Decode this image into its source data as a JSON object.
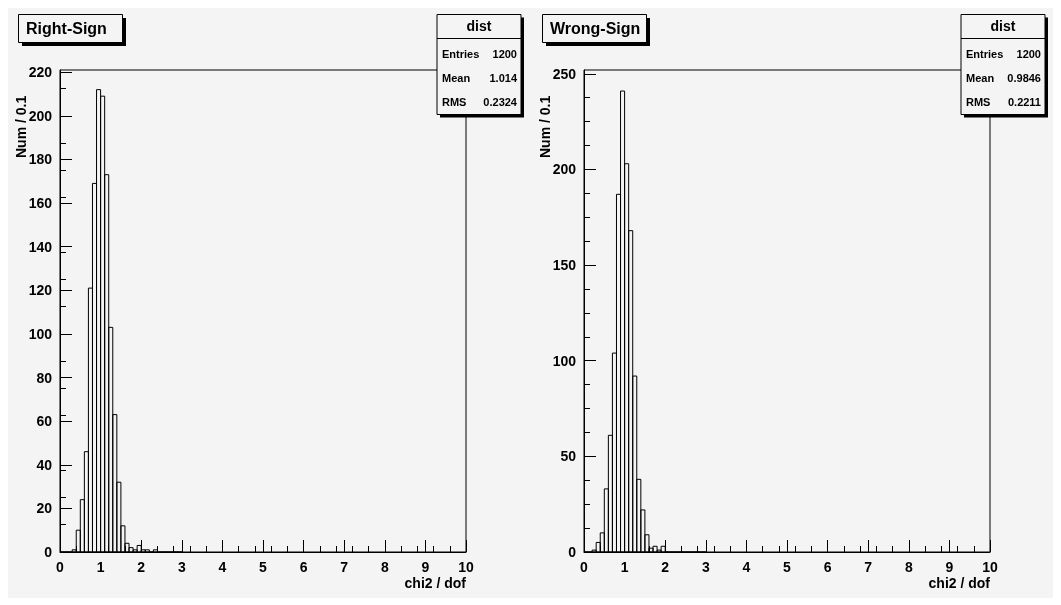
{
  "chart_data": [
    {
      "type": "histogram",
      "title": "Right-Sign",
      "xlabel": "chi2 / dof",
      "ylabel": "Num / 0.1",
      "annotations": [
        "dist",
        "Entries",
        "1200",
        "Mean",
        "1.014",
        "RMS",
        "0.2324"
      ],
      "bins": [
        0,
        0.1,
        0.2,
        0.3,
        0.4,
        0.5,
        0.6,
        0.7,
        0.8,
        0.9,
        1,
        1.1,
        1.2,
        1.3,
        1.4,
        1.5,
        1.6,
        1.7,
        1.8,
        1.9,
        2,
        2.1,
        2.2,
        2.3,
        2.4,
        2.5,
        2.6,
        2.7,
        2.8,
        2.9,
        3
      ],
      "values": [
        0,
        0,
        0,
        1,
        10,
        24,
        46,
        121,
        169,
        212,
        209,
        173,
        103,
        63,
        32,
        12,
        4,
        2,
        1,
        3,
        1,
        1,
        0,
        1,
        0,
        0,
        0,
        0,
        0,
        0
      ],
      "color": "#000000",
      "xlim": [
        0,
        10
      ],
      "xticks": [
        0,
        1,
        2,
        3,
        4,
        5,
        6,
        7,
        8,
        9,
        10
      ],
      "ylim": [
        0,
        221
      ],
      "yticks": [
        0,
        20,
        40,
        60,
        80,
        100,
        120,
        140,
        160,
        180,
        200,
        220
      ],
      "grid": false
    },
    {
      "type": "histogram",
      "title": "Wrong-Sign",
      "xlabel": "chi2 / dof",
      "ylabel": "Num / 0.1",
      "annotations": [
        "dist",
        "Entries",
        "1200",
        "Mean",
        "0.9846",
        "RMS",
        "0.2211"
      ],
      "bins": [
        0,
        0.1,
        0.2,
        0.3,
        0.4,
        0.5,
        0.6,
        0.7,
        0.8,
        0.9,
        1,
        1.1,
        1.2,
        1.3,
        1.4,
        1.5,
        1.6,
        1.7,
        1.8,
        1.9,
        2,
        2.1,
        2.2,
        2.3,
        2.4,
        2.5,
        2.6,
        2.7,
        2.8,
        2.9,
        3
      ],
      "values": [
        0,
        0,
        1,
        5,
        10,
        33,
        61,
        104,
        187,
        241,
        203,
        168,
        92,
        38,
        22,
        9,
        2,
        3,
        1,
        3,
        0,
        0,
        0,
        0,
        0,
        0,
        0,
        0,
        0,
        0
      ],
      "color": "#000000",
      "xlim": [
        0,
        10
      ],
      "xticks": [
        0,
        1,
        2,
        3,
        4,
        5,
        6,
        7,
        8,
        9,
        10
      ],
      "ylim": [
        0,
        252
      ],
      "yticks": [
        0,
        50,
        100,
        150,
        200,
        250
      ],
      "grid": false
    }
  ]
}
